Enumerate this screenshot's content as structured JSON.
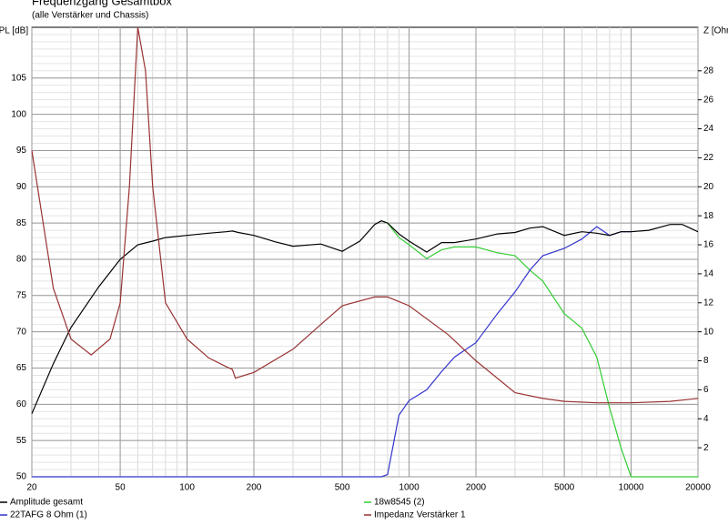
{
  "chart_data": {
    "type": "line",
    "title": "Frequenzgang Gesamtbox",
    "subtitle": "(alle Verstärker und Chassis)",
    "ylabel": "SPL [dB]",
    "y2label": "Z [Ohm]",
    "xscale": "log",
    "grid": true,
    "xlim": [
      20,
      20000
    ],
    "xticks": [
      20,
      50,
      100,
      200,
      500,
      1000,
      2000,
      5000,
      10000,
      20000
    ],
    "ylim": [
      50,
      112
    ],
    "yticks": [
      50,
      55,
      60,
      65,
      70,
      75,
      80,
      85,
      90,
      95,
      100,
      105
    ],
    "y2lim": [
      0,
      31
    ],
    "y2ticks": [
      2,
      4,
      6,
      8,
      10,
      12,
      14,
      16,
      18,
      20,
      22,
      24,
      26,
      28
    ],
    "series": [
      {
        "name": "Amplitude gesamt",
        "color": "#000000",
        "x": [
          20,
          25,
          30,
          40,
          50,
          60,
          70,
          80,
          100,
          125,
          150,
          160,
          170,
          200,
          250,
          300,
          400,
          500,
          600,
          700,
          750,
          800,
          900,
          1000,
          1200,
          1400,
          1600,
          2000,
          2500,
          3000,
          3500,
          4000,
          5000,
          6000,
          7000,
          8000,
          9000,
          10000,
          12000,
          15000,
          17000,
          20000
        ],
        "values": [
          58.7,
          65.6,
          70.6,
          76.2,
          80,
          82,
          82.5,
          83,
          83.3,
          83.6,
          83.8,
          83.9,
          83.7,
          83.3,
          82.4,
          81.8,
          82.1,
          81.1,
          82.5,
          84.8,
          85.3,
          85,
          83.5,
          82.5,
          81,
          82.3,
          82.3,
          82.8,
          83.5,
          83.7,
          84.3,
          84.5,
          83.3,
          83.8,
          83.6,
          83.3,
          83.8,
          83.8,
          84,
          84.8,
          84.8,
          83.8
        ]
      },
      {
        "name": "18w8545 (2)",
        "color": "#33cc33",
        "x": [
          750,
          800,
          900,
          1000,
          1200,
          1400,
          1600,
          2000,
          2500,
          3000,
          3500,
          4000,
          5000,
          6000,
          7000,
          8000,
          9000,
          10000,
          12000,
          15000,
          20000
        ],
        "values": [
          85.3,
          85,
          83,
          82,
          80.1,
          81.3,
          81.7,
          81.7,
          80.9,
          80.5,
          78.5,
          77,
          72.5,
          70.5,
          66.5,
          59.5,
          54,
          50,
          50,
          50,
          50
        ]
      },
      {
        "name": "22TAFG 8 Ohm (1)",
        "color": "#3333cc",
        "x": [
          20,
          100,
          500,
          750,
          800,
          900,
          1000,
          1200,
          1400,
          1600,
          2000,
          2500,
          3000,
          3500,
          4000,
          5000,
          6000,
          7000,
          8000,
          9000,
          10000
        ],
        "values": [
          50,
          50,
          50,
          50,
          50.3,
          58.5,
          60.5,
          62,
          64.5,
          66.5,
          68.5,
          72.5,
          75.5,
          78.5,
          80.5,
          81.5,
          82.8,
          84.5,
          83.3,
          83.8,
          83.8
        ]
      },
      {
        "name": "Impedanz Verstärker 1",
        "color": "#993333",
        "axis": "y2",
        "x": [
          20,
          25,
          30,
          37,
          45,
          50,
          55,
          60,
          65,
          70,
          80,
          100,
          125,
          150,
          160,
          165,
          200,
          300,
          400,
          500,
          700,
          800,
          1000,
          1500,
          2000,
          3000,
          4000,
          5000,
          7000,
          10000,
          15000,
          20000
        ],
        "values": [
          22.5,
          13,
          9.5,
          8.4,
          9.5,
          12,
          20,
          31,
          28,
          20,
          12,
          9.5,
          8.2,
          7.6,
          7.4,
          6.8,
          7.2,
          8.8,
          10.5,
          11.8,
          12.4,
          12.4,
          11.8,
          9.8,
          8,
          5.8,
          5.4,
          5.2,
          5.1,
          5.1,
          5.2,
          5.4
        ]
      }
    ]
  }
}
